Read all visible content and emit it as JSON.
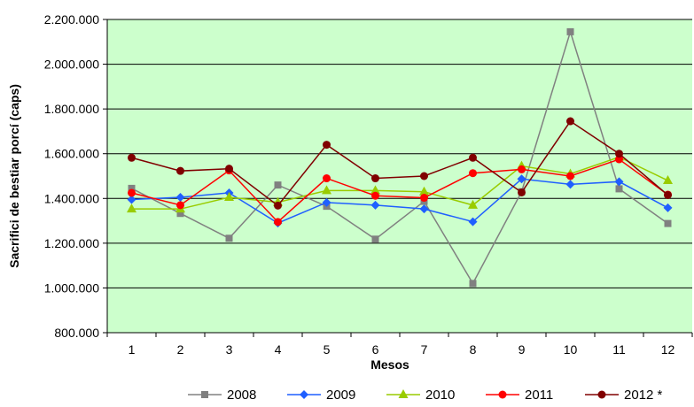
{
  "chart_data": {
    "type": "line",
    "title": "",
    "xlabel": "Mesos",
    "ylabel": "Sacrifici de bestiar porcí (caps)",
    "categories": [
      "1",
      "2",
      "3",
      "4",
      "5",
      "6",
      "7",
      "8",
      "9",
      "10",
      "11",
      "12"
    ],
    "ylim": [
      800000,
      2200000
    ],
    "yticks": [
      800000,
      1000000,
      1200000,
      1400000,
      1600000,
      1800000,
      2000000,
      2200000
    ],
    "ytick_labels": [
      "800.000",
      "1.000.000",
      "1.200.000",
      "1.400.000",
      "1.600.000",
      "1.800.000",
      "2.000.000",
      "2.200.000"
    ],
    "plot_background": "#ccffcc",
    "grid": "horizontal",
    "legend_position": "bottom",
    "series": [
      {
        "name": "2008",
        "color": "#808080",
        "marker": "square",
        "values": [
          1445000,
          1333000,
          1222000,
          1460000,
          1365000,
          1218000,
          1387000,
          1020000,
          1430000,
          2145000,
          1443000,
          1288000
        ]
      },
      {
        "name": "2009",
        "color": "#1f5fff",
        "marker": "diamond",
        "values": [
          1395000,
          1405000,
          1425000,
          1290000,
          1382000,
          1370000,
          1353000,
          1296000,
          1487000,
          1463000,
          1475000,
          1358000
        ]
      },
      {
        "name": "2010",
        "color": "#99cc00",
        "marker": "triangle",
        "values": [
          1353000,
          1353000,
          1405000,
          1383000,
          1435000,
          1435000,
          1430000,
          1370000,
          1545000,
          1510000,
          1585000,
          1480000
        ]
      },
      {
        "name": "2011",
        "color": "#ff0000",
        "marker": "circle",
        "values": [
          1425000,
          1370000,
          1525000,
          1295000,
          1490000,
          1412000,
          1403000,
          1513000,
          1530000,
          1500000,
          1575000,
          1417000
        ]
      },
      {
        "name": "2012 *",
        "color": "#800000",
        "marker": "circle",
        "values": [
          1582000,
          1523000,
          1533000,
          1368000,
          1640000,
          1490000,
          1500000,
          1582000,
          1427000,
          1745000,
          1600000,
          1415000
        ]
      }
    ]
  }
}
